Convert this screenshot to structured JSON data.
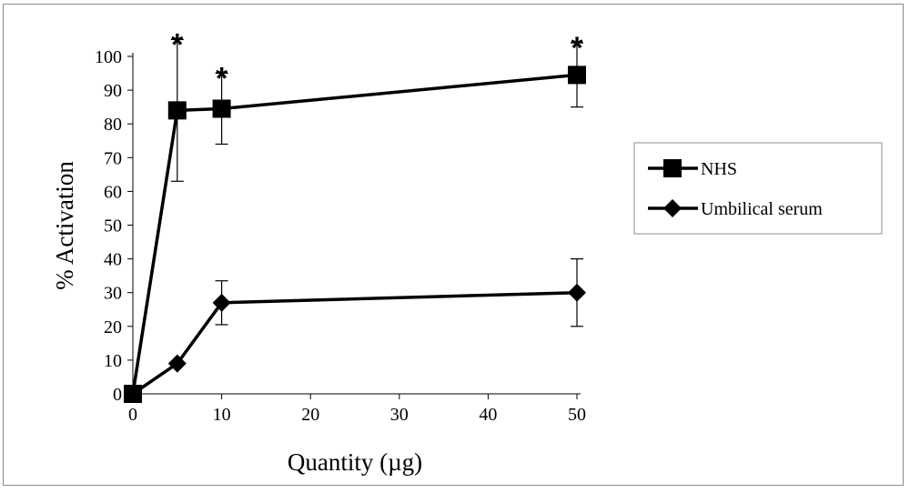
{
  "chart_data": {
    "type": "line",
    "title": "",
    "xlabel": "Quantity (µg)",
    "ylabel": "% Activation",
    "x_ticks": [
      0,
      10,
      20,
      30,
      40,
      50
    ],
    "y_ticks": [
      0,
      10,
      20,
      30,
      40,
      50,
      60,
      70,
      80,
      90,
      100
    ],
    "xlim": [
      0,
      50
    ],
    "ylim": [
      0,
      100
    ],
    "grid": false,
    "legend_position": "right",
    "series": [
      {
        "name": "NHS",
        "marker": "square",
        "color": "#000000",
        "x": [
          0,
          5,
          10,
          50
        ],
        "y": [
          0,
          84,
          84.5,
          94.5
        ],
        "error": [
          0,
          21,
          10.5,
          9.5
        ],
        "significant": [
          false,
          true,
          true,
          true
        ]
      },
      {
        "name": "Umbilical serum",
        "marker": "diamond",
        "color": "#000000",
        "x": [
          0,
          5,
          10,
          50
        ],
        "y": [
          0,
          9,
          27,
          30
        ],
        "error": [
          0,
          0,
          6.5,
          10
        ],
        "significant": [
          false,
          false,
          false,
          false
        ]
      }
    ],
    "significance_marker": "*"
  }
}
